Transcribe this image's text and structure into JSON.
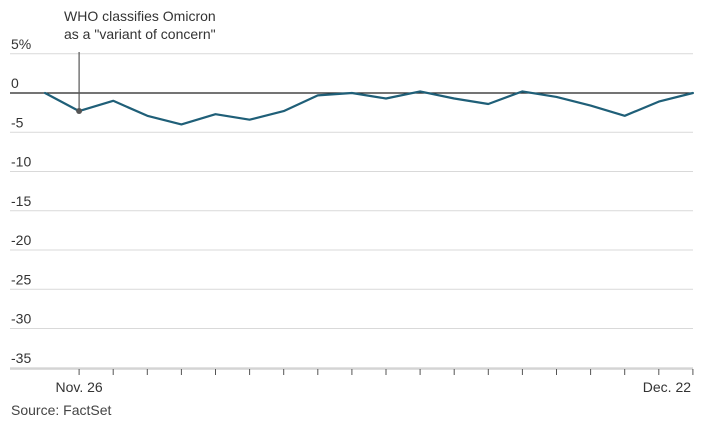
{
  "chart_data": {
    "type": "line",
    "title": "",
    "xlabel": "",
    "ylabel": "",
    "ylim": [
      -37,
      6
    ],
    "y_ticks": [
      {
        "value": 5,
        "label": "5%"
      },
      {
        "value": 0,
        "label": "0"
      },
      {
        "value": -5,
        "label": "-5"
      },
      {
        "value": -10,
        "label": "-10"
      },
      {
        "value": -15,
        "label": "-15"
      },
      {
        "value": -20,
        "label": "-20"
      },
      {
        "value": -25,
        "label": "-25"
      },
      {
        "value": -30,
        "label": "-30"
      },
      {
        "value": -35,
        "label": "-35"
      }
    ],
    "x_labels": [
      {
        "value": "2021-11-26",
        "label": "Nov. 26"
      },
      {
        "value": "2021-12-22",
        "label": "Dec. 22"
      }
    ],
    "x_ticks": [
      "2021-11-26",
      "2021-11-29",
      "2021-11-30",
      "2021-12-01",
      "2021-12-02",
      "2021-12-03",
      "2021-12-06",
      "2021-12-07",
      "2021-12-08",
      "2021-12-09",
      "2021-12-10",
      "2021-12-13",
      "2021-12-14",
      "2021-12-15",
      "2021-12-16",
      "2021-12-17",
      "2021-12-20",
      "2021-12-21",
      "2021-12-22"
    ],
    "series": [
      {
        "x": [
          "2021-11-25",
          "2021-11-26",
          "2021-11-29",
          "2021-11-30",
          "2021-12-01",
          "2021-12-02",
          "2021-12-03",
          "2021-12-06",
          "2021-12-07",
          "2021-12-08",
          "2021-12-09",
          "2021-12-10",
          "2021-12-13",
          "2021-12-14",
          "2021-12-15",
          "2021-12-16",
          "2021-12-17",
          "2021-12-20",
          "2021-12-21",
          "2021-12-22"
        ],
        "values": [
          0,
          -2.3,
          -1.0,
          -2.9,
          -4.0,
          -2.7,
          -3.4,
          -2.3,
          -0.3,
          0,
          -0.7,
          0.2,
          -0.7,
          -1.4,
          0.2,
          -0.5,
          -1.6,
          -2.9,
          -1.1,
          0
        ],
        "color": "#1f5f78"
      }
    ],
    "grid": true,
    "zero_line": true,
    "annotation": {
      "x": "2021-11-26",
      "y": -2.3,
      "lines": [
        "WHO classifies Omicron",
        "as a \"variant of concern\""
      ]
    }
  },
  "source": "Source: FactSet",
  "colors": {
    "line": "#1f5f78",
    "grid": "#d9d9d9",
    "zero": "#222222",
    "annotation": "#555555"
  }
}
